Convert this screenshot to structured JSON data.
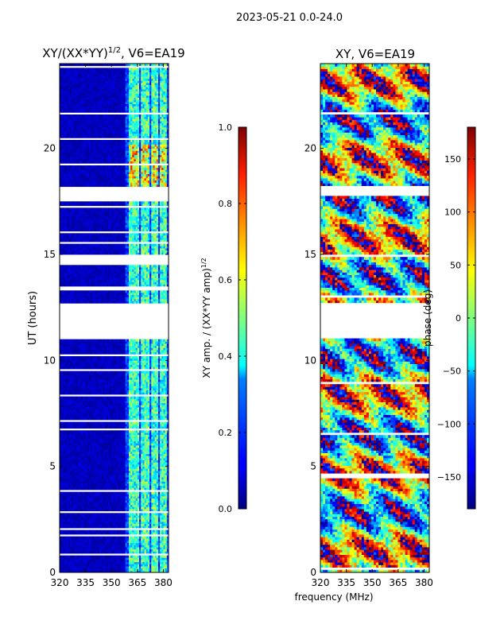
{
  "figure_title": "2023-05-21 0.0-24.0",
  "shared_xlabel": "frequency (MHz)",
  "colors": {
    "background": "#ffffff",
    "axis": "#000000"
  },
  "chart_data": [
    {
      "id": "amp_ratio",
      "type": "heatmap",
      "title_main": "XY/(XX*YY)",
      "title_exp": "1/2",
      "title_tail": ", V6=EA19",
      "xlabel": "",
      "ylabel": "UT (hours)",
      "xlim": [
        320,
        383
      ],
      "ylim": [
        0,
        24
      ],
      "xticks": [
        320,
        335,
        350,
        365,
        380
      ],
      "yticks": [
        0,
        5,
        10,
        15,
        20
      ],
      "colormap": "jet",
      "colorbar": {
        "label_main": "XY amp. / (XX*YY amp)",
        "label_exp": "1/2",
        "range": [
          0.0,
          1.0
        ],
        "ticks": [
          0.0,
          0.2,
          0.4,
          0.6,
          0.8,
          1.0
        ],
        "tick_labels": [
          "0.0",
          "0.2",
          "0.4",
          "0.6",
          "0.8",
          "1.0"
        ]
      },
      "data_gaps_hours": [
        [
          10.95,
          12.65
        ],
        [
          14.55,
          14.95
        ],
        [
          17.5,
          18.2
        ]
      ],
      "bright_band_mhz": [
        [
          360,
          366
        ],
        [
          367,
          372
        ],
        [
          373,
          377
        ],
        [
          378,
          382
        ]
      ],
      "notes": "mostly near 0.0 below 360 MHz; 0.3-0.6 in 360-382 MHz bands; up to ~0.9 around 18-20 UT"
    },
    {
      "id": "xy_phase",
      "type": "heatmap",
      "title_main": "XY, V6=EA19",
      "xlabel": "frequency (MHz)",
      "ylabel": "",
      "xlim": [
        320,
        383
      ],
      "ylim": [
        0,
        24
      ],
      "xticks": [
        320,
        335,
        350,
        365,
        380
      ],
      "yticks": [
        0,
        5,
        10,
        15,
        20
      ],
      "colormap": "jet",
      "colorbar": {
        "label": "phase (deg)",
        "range": [
          -180,
          180
        ],
        "ticks": [
          150,
          100,
          50,
          0,
          -50,
          -100,
          -150
        ],
        "tick_labels": [
          "150",
          "100",
          "50",
          "0",
          "−50",
          "−100",
          "−150"
        ]
      },
      "data_gaps_hours": [
        [
          10.95,
          12.65
        ],
        [
          17.7,
          18.2
        ]
      ],
      "notes": "phase varies across full -180..180 range, striped by time"
    }
  ]
}
